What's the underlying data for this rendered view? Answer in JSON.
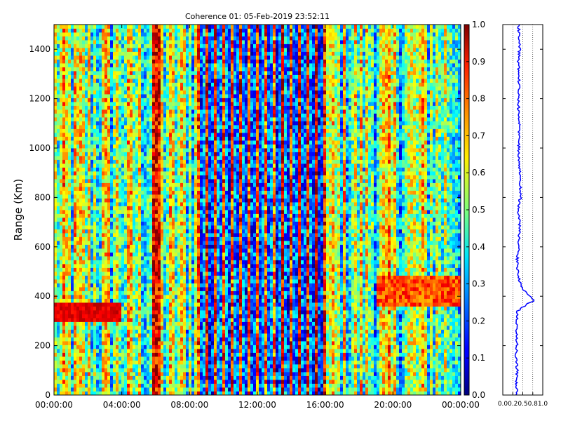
{
  "chart_data": [
    {
      "type": "heatmap",
      "title": "Coherence 01: 05-Feb-2019 23:52:11",
      "xlabel": "",
      "ylabel": "Range (Km)",
      "x_ticks": [
        "00:00:00",
        "04:00:00",
        "08:00:00",
        "12:00:00",
        "16:00:00",
        "20:00:00",
        "00:00:00"
      ],
      "x_range_hours": [
        0,
        24
      ],
      "y_ticks": [
        0,
        200,
        400,
        600,
        800,
        1000,
        1200,
        1400
      ],
      "ylim": [
        0,
        1500
      ],
      "colorscale": "jet",
      "colorbar": {
        "ticks": [
          "0.0",
          "0.1",
          "0.2",
          "0.3",
          "0.4",
          "0.5",
          "0.6",
          "0.7",
          "0.8",
          "0.9",
          "1.0"
        ],
        "range": [
          0,
          1
        ]
      },
      "features": [
        {
          "description": "high coherence band",
          "x_hours": [
            0,
            4
          ],
          "range_km": [
            290,
            380
          ],
          "value": 0.85
        },
        {
          "description": "high coherence band",
          "x_hours": [
            19,
            24
          ],
          "range_km": [
            360,
            480
          ],
          "value": 0.8
        },
        {
          "description": "low coherence region",
          "x_hours": [
            8.5,
            16
          ],
          "range_km": [
            0,
            1500
          ],
          "value": 0.15
        }
      ]
    },
    {
      "type": "line",
      "title": "",
      "xlabel": "",
      "ylabel": "",
      "x_ticks": [
        "0.0",
        "0.2",
        "0.5",
        "0.8",
        "1.0"
      ],
      "xlim": [
        0,
        1
      ],
      "ylim": [
        0,
        1500
      ],
      "grid": true,
      "series": [
        {
          "color": "#0000ff",
          "x": [
            0.35,
            0.34,
            0.36,
            0.33,
            0.35,
            0.34,
            0.36,
            0.35,
            0.37,
            0.45,
            0.55,
            0.62,
            0.7,
            0.78,
            0.68,
            0.5,
            0.42,
            0.38,
            0.36,
            0.4,
            0.42,
            0.38,
            0.44,
            0.43,
            0.4,
            0.42,
            0.38,
            0.4,
            0.41,
            0.39,
            0.42,
            0.4
          ],
          "y": [
            0,
            50,
            100,
            150,
            200,
            250,
            300,
            330,
            340,
            350,
            360,
            370,
            375,
            380,
            400,
            430,
            460,
            500,
            550,
            600,
            700,
            750,
            800,
            900,
            1000,
            1100,
            1200,
            1250,
            1300,
            1350,
            1400,
            1500
          ]
        }
      ]
    }
  ]
}
